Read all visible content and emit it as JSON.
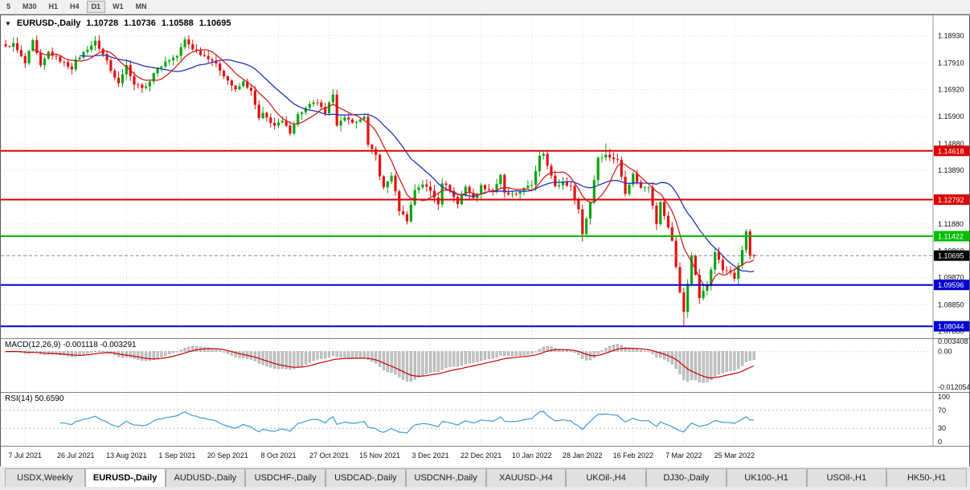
{
  "toolbar": {
    "timeframes": [
      {
        "label": "5",
        "active": false
      },
      {
        "label": "M30",
        "active": false
      },
      {
        "label": "H1",
        "active": false
      },
      {
        "label": "H4",
        "active": false
      },
      {
        "label": "D1",
        "active": true
      },
      {
        "label": "W1",
        "active": false
      },
      {
        "label": "MN",
        "active": false
      }
    ]
  },
  "chart_header": {
    "dropdown_icon": "▼",
    "title": "EURUSD-,Daily",
    "open": "1.10728",
    "high": "1.10736",
    "low": "1.10588",
    "close": "1.10695"
  },
  "price_axis": {
    "labels": [
      "1.18930",
      "1.17910",
      "1.16920",
      "1.15900",
      "1.14880",
      "1.13890",
      "1.12870",
      "1.11880",
      "1.10860",
      "1.09870",
      "1.08850",
      "1.07860"
    ]
  },
  "current_price": {
    "value": 1.10695,
    "label": "1.10695",
    "color": "#000000"
  },
  "macd_panel": {
    "title": "MACD(12,26,9) -0.001118 -0.003291",
    "axis_labels": [
      {
        "text": "0.003408",
        "value": 0.003408
      },
      {
        "text": "0.00",
        "value": 0
      },
      {
        "text": "-0.012054",
        "value": -0.012054
      }
    ]
  },
  "rsi_panel": {
    "title": "RSI(14) 50.6590",
    "axis_labels": [
      {
        "text": "100",
        "value": 100
      },
      {
        "text": "70",
        "value": 70
      },
      {
        "text": "30",
        "value": 30
      },
      {
        "text": "0",
        "value": 0
      }
    ],
    "levels": [
      70,
      30
    ]
  },
  "tabs": {
    "items": [
      {
        "label": "USDX,Weekly",
        "active": false
      },
      {
        "label": "EURUSD-,Daily",
        "active": true
      },
      {
        "label": "AUDUSD-,Daily",
        "active": false
      },
      {
        "label": "USDCHF-,Daily",
        "active": false
      },
      {
        "label": "USDCAD-,Daily",
        "active": false
      },
      {
        "label": "USDCNH-,Daily",
        "active": false
      },
      {
        "label": "XAUUSD-,H4",
        "active": false
      },
      {
        "label": "UKOil-,H4",
        "active": false
      },
      {
        "label": "DJ30-,Daily",
        "active": false
      },
      {
        "label": "UK100-,H1",
        "active": false
      },
      {
        "label": "USOil-,H1",
        "active": false
      },
      {
        "label": "HK50-,H1",
        "active": false
      }
    ]
  },
  "colors": {
    "candle_up": "#0da414",
    "candle_down": "#e01212",
    "ma_fast": "#cc2222",
    "ma_slow": "#2233bb",
    "macd_histogram": "#c4c4c4",
    "macd_signal": "#cc0000",
    "rsi_line": "#3d9bd5",
    "grid": "#d8d8d8"
  },
  "chart_data": {
    "type": "candlestick",
    "symbol": "EURUSD-",
    "timeframe": "Daily",
    "last_bar": {
      "open": 1.10728,
      "high": 1.10736,
      "low": 1.10588,
      "close": 1.10695
    },
    "bars_count": 193,
    "price_scale": {
      "top": 1.197,
      "bottom": 1.076
    },
    "x_axis_labels": [
      {
        "text": "7 Jul 2021",
        "bar": 5
      },
      {
        "text": "26 Jul 2021",
        "bar": 18
      },
      {
        "text": "13 Aug 2021",
        "bar": 31
      },
      {
        "text": "1 Sep 2021",
        "bar": 44
      },
      {
        "text": "20 Sep 2021",
        "bar": 57
      },
      {
        "text": "8 Oct 2021",
        "bar": 70
      },
      {
        "text": "27 Oct 2021",
        "bar": 83
      },
      {
        "text": "15 Nov 2021",
        "bar": 96
      },
      {
        "text": "3 Dec 2021",
        "bar": 109
      },
      {
        "text": "22 Dec 2021",
        "bar": 122
      },
      {
        "text": "10 Jan 2022",
        "bar": 135
      },
      {
        "text": "28 Jan 2022",
        "bar": 148
      },
      {
        "text": "16 Feb 2022",
        "bar": 161
      },
      {
        "text": "7 Mar 2022",
        "bar": 174
      },
      {
        "text": "25 Mar 2022",
        "bar": 187
      }
    ],
    "levels": [
      {
        "value": 1.14618,
        "label": "1.14618",
        "color": "#dd0000"
      },
      {
        "value": 1.12792,
        "label": "1.12792",
        "color": "#dd0000"
      },
      {
        "value": 1.11422,
        "label": "1.11422",
        "color": "#00c000"
      },
      {
        "value": 1.09596,
        "label": "1.09596",
        "color": "#0000d0"
      },
      {
        "value": 1.08044,
        "label": "1.08044",
        "color": "#0000d0"
      }
    ],
    "close_keypoints": [
      [
        0,
        1.185
      ],
      [
        2,
        1.1862
      ],
      [
        5,
        1.179
      ],
      [
        7,
        1.1872
      ],
      [
        9,
        1.1778
      ],
      [
        11,
        1.1832
      ],
      [
        14,
        1.18
      ],
      [
        17,
        1.1772
      ],
      [
        18,
        1.18
      ],
      [
        21,
        1.1845
      ],
      [
        23,
        1.1871
      ],
      [
        26,
        1.18
      ],
      [
        27,
        1.1762
      ],
      [
        29,
        1.172
      ],
      [
        31,
        1.1782
      ],
      [
        33,
        1.1712
      ],
      [
        36,
        1.1698
      ],
      [
        38,
        1.1755
      ],
      [
        41,
        1.1796
      ],
      [
        44,
        1.1818
      ],
      [
        46,
        1.1878
      ],
      [
        48,
        1.1845
      ],
      [
        50,
        1.1826
      ],
      [
        53,
        1.1802
      ],
      [
        55,
        1.1766
      ],
      [
        57,
        1.1726
      ],
      [
        59,
        1.1688
      ],
      [
        61,
        1.172
      ],
      [
        63,
        1.1684
      ],
      [
        65,
        1.1582
      ],
      [
        66,
        1.16
      ],
      [
        69,
        1.1556
      ],
      [
        71,
        1.1572
      ],
      [
        73,
        1.1532
      ],
      [
        75,
        1.1597
      ],
      [
        78,
        1.1633
      ],
      [
        80,
        1.1645
      ],
      [
        82,
        1.1598
      ],
      [
        84,
        1.1678
      ],
      [
        85,
        1.1562
      ],
      [
        87,
        1.1582
      ],
      [
        90,
        1.1568
      ],
      [
        92,
        1.1592
      ],
      [
        93,
        1.1482
      ],
      [
        95,
        1.1446
      ],
      [
        96,
        1.137
      ],
      [
        97,
        1.1322
      ],
      [
        99,
        1.1372
      ],
      [
        101,
        1.124
      ],
      [
        103,
        1.1202
      ],
      [
        105,
        1.1316
      ],
      [
        107,
        1.1338
      ],
      [
        109,
        1.1312
      ],
      [
        111,
        1.1266
      ],
      [
        112,
        1.1344
      ],
      [
        114,
        1.1316
      ],
      [
        116,
        1.1262
      ],
      [
        118,
        1.133
      ],
      [
        120,
        1.1282
      ],
      [
        122,
        1.133
      ],
      [
        125,
        1.131
      ],
      [
        127,
        1.1368
      ],
      [
        128,
        1.1302
      ],
      [
        131,
        1.1296
      ],
      [
        133,
        1.1326
      ],
      [
        135,
        1.133
      ],
      [
        137,
        1.1446
      ],
      [
        138,
        1.1454
      ],
      [
        141,
        1.1326
      ],
      [
        143,
        1.1344
      ],
      [
        145,
        1.1326
      ],
      [
        147,
        1.1242
      ],
      [
        148,
        1.115
      ],
      [
        150,
        1.127
      ],
      [
        152,
        1.1438
      ],
      [
        154,
        1.1446
      ],
      [
        157,
        1.1426
      ],
      [
        159,
        1.1306
      ],
      [
        161,
        1.1374
      ],
      [
        163,
        1.1322
      ],
      [
        165,
        1.133
      ],
      [
        167,
        1.1192
      ],
      [
        168,
        1.1268
      ],
      [
        169,
        1.122
      ],
      [
        171,
        1.1126
      ],
      [
        173,
        1.0932
      ],
      [
        174,
        1.0856
      ],
      [
        176,
        1.1074
      ],
      [
        178,
        1.0912
      ],
      [
        180,
        1.0956
      ],
      [
        182,
        1.1088
      ],
      [
        184,
        1.1016
      ],
      [
        186,
        1.1006
      ],
      [
        187,
        1.0984
      ],
      [
        189,
        1.1086
      ],
      [
        190,
        1.116
      ],
      [
        191,
        1.1067
      ],
      [
        192,
        1.10695
      ]
    ],
    "bar_overrides": {
      "103": {
        "low": 1.1186
      },
      "148": {
        "low": 1.1122
      },
      "154": {
        "high": 1.149
      },
      "174": {
        "low": 1.0806
      },
      "190": {
        "high": 1.1168
      },
      "192": {
        "open": 1.10728,
        "high": 1.10736,
        "low": 1.10588,
        "close": 1.10695
      }
    },
    "indicators": {
      "ma_fast": {
        "type": "sma",
        "period": 8
      },
      "ma_slow": {
        "type": "sma",
        "period": 20
      },
      "macd": {
        "fast": 12,
        "slow": 26,
        "signal": 9,
        "main_value": -0.001118,
        "signal_value": -0.003291,
        "scale_max": 0.0045,
        "scale_min": -0.0137
      },
      "rsi": {
        "period": 14,
        "value": 50.659
      }
    }
  }
}
